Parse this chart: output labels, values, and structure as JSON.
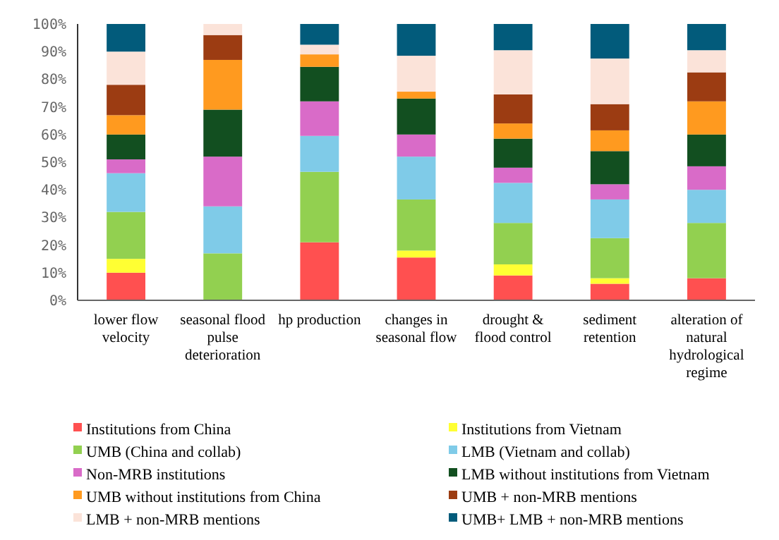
{
  "chart_data": {
    "type": "bar",
    "stacked": true,
    "legend": "bottom",
    "grid": false,
    "categories": [
      "lower flow velocity",
      "seasonal flood pulse deterioration",
      "hp production",
      "changes in seasonal flow",
      "drought & flood control",
      "sediment retention",
      "alteration of natural hydrological regime"
    ],
    "ylim": [
      0,
      100
    ],
    "yticks": [
      {
        "value": 0,
        "label": "0%"
      },
      {
        "value": 10,
        "label": "10%"
      },
      {
        "value": 20,
        "label": "20%"
      },
      {
        "value": 30,
        "label": "30%"
      },
      {
        "value": 40,
        "label": "40%"
      },
      {
        "value": 50,
        "label": "50%"
      },
      {
        "value": 60,
        "label": "60%"
      },
      {
        "value": 70,
        "label": "70%"
      },
      {
        "value": 80,
        "label": "80%"
      },
      {
        "value": 90,
        "label": "90%"
      },
      {
        "value": 100,
        "label": "100%"
      }
    ],
    "series": [
      {
        "name": "Institutions from China",
        "color": "#ff5050",
        "values": [
          10,
          0,
          21,
          15.5,
          9,
          6,
          8
        ]
      },
      {
        "name": "Institutions from Vietnam",
        "color": "#ffff33",
        "values": [
          5,
          0,
          0,
          2.5,
          4,
          2,
          0
        ]
      },
      {
        "name": "UMB (China and collab)",
        "color": "#92d050",
        "values": [
          17,
          17,
          25.5,
          18.5,
          15,
          14.5,
          20
        ]
      },
      {
        "name": "LMB  (Vietnam and collab)",
        "color": "#7fcbe8",
        "values": [
          14,
          17,
          13,
          15.5,
          14.5,
          14,
          12
        ]
      },
      {
        "name": "Non-MRB institutions",
        "color": "#d96bc8",
        "values": [
          5,
          18,
          12.5,
          8,
          5.5,
          5.5,
          8.5
        ]
      },
      {
        "name": "LMB  without institutions from Vietnam",
        "color": "#124f20",
        "values": [
          9,
          17,
          12.5,
          13,
          10.5,
          12,
          11.5
        ]
      },
      {
        "name": "UMB without institutions from China",
        "color": "#ff9a1f",
        "values": [
          7,
          18,
          4.5,
          2.5,
          5.5,
          7.5,
          12
        ]
      },
      {
        "name": "UMB + non-MRB mentions",
        "color": "#9c3c12",
        "values": [
          11,
          9,
          0,
          0,
          10.5,
          9.5,
          10.5
        ]
      },
      {
        "name": "LMB + non-MRB mentions",
        "color": "#fbe3d9",
        "values": [
          12,
          4,
          3.5,
          13,
          16,
          16.5,
          8
        ]
      },
      {
        "name": "UMB+ LMB + non-MRB mentions",
        "color": "#025b7b",
        "values": [
          10,
          0,
          7.5,
          11.5,
          9.5,
          12.5,
          9.5
        ]
      }
    ]
  }
}
